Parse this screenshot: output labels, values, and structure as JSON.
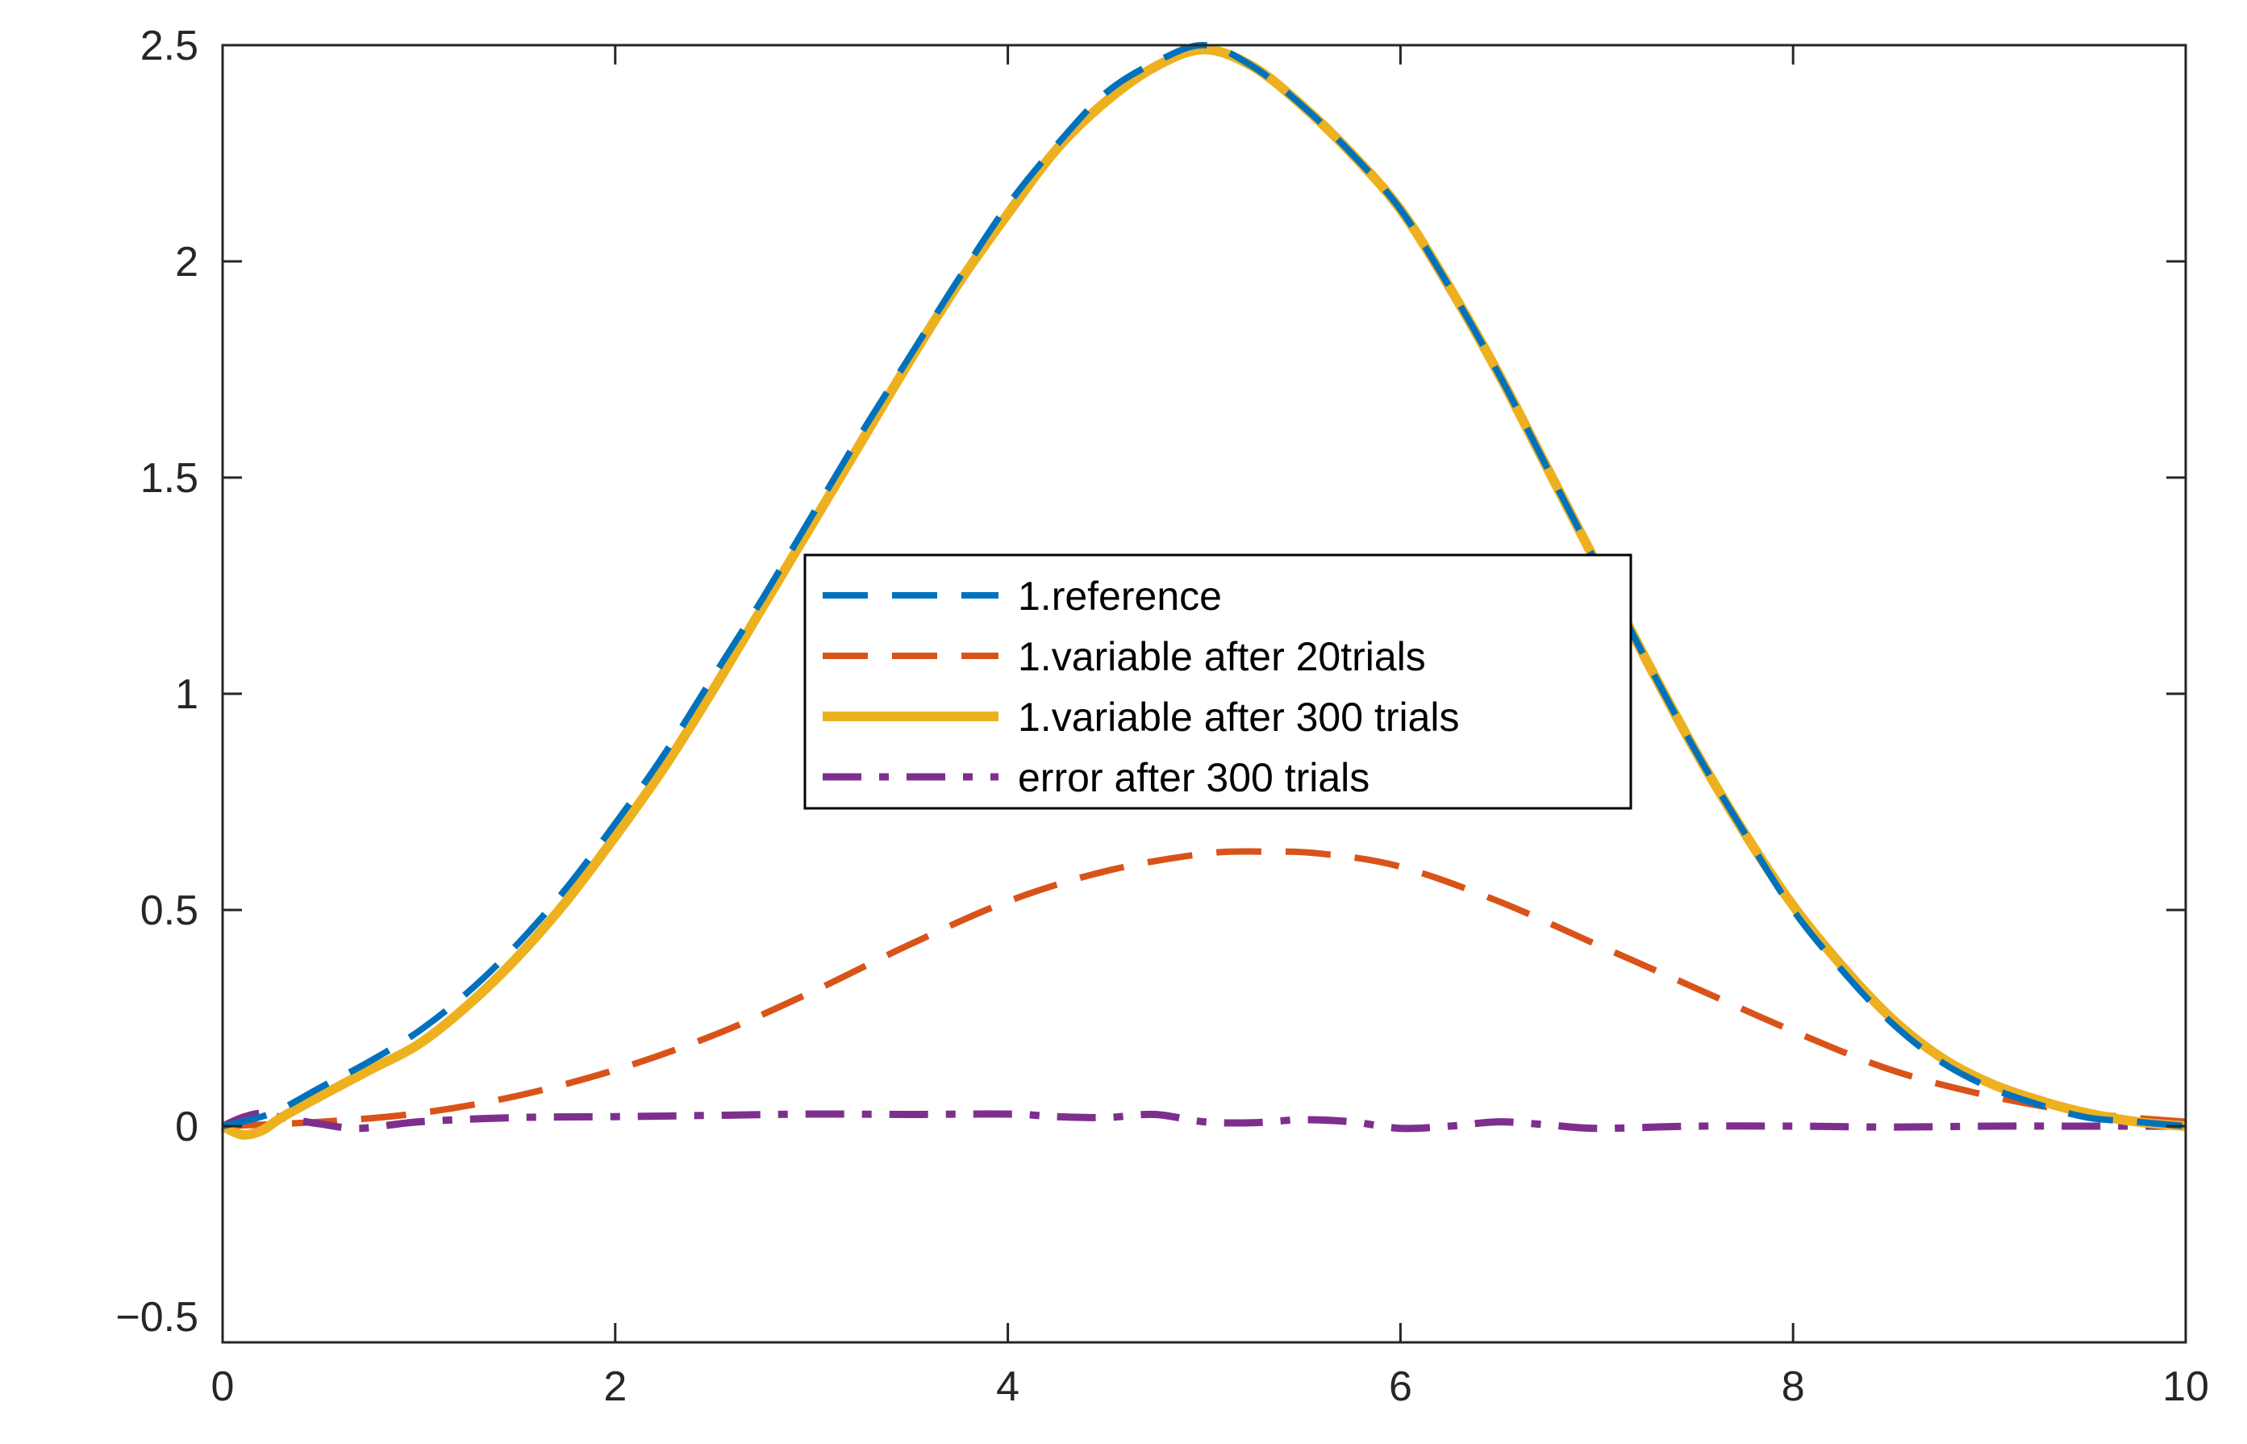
{
  "chart_data": {
    "type": "line",
    "title": "",
    "xlabel": "",
    "ylabel": "",
    "xlim": [
      0,
      10
    ],
    "ylim": [
      -0.5,
      2.5
    ],
    "grid": false,
    "legend_position": "center",
    "xticks": [
      {
        "value": 0,
        "label": "0"
      },
      {
        "value": 2,
        "label": "2"
      },
      {
        "value": 4,
        "label": "4"
      },
      {
        "value": 6,
        "label": "6"
      },
      {
        "value": 8,
        "label": "8"
      },
      {
        "value": 10,
        "label": "10"
      }
    ],
    "yticks": [
      {
        "value": -0.5,
        "label": "−0.5"
      },
      {
        "value": 0,
        "label": "0"
      },
      {
        "value": 0.5,
        "label": "0.5"
      },
      {
        "value": 1,
        "label": "1"
      },
      {
        "value": 1.5,
        "label": "1.5"
      },
      {
        "value": 2,
        "label": "2"
      },
      {
        "value": 2.5,
        "label": "2.5"
      }
    ],
    "series": [
      {
        "name": "1.reference",
        "color": "#0072BD",
        "style": "dashed",
        "x": [
          0,
          0.25,
          0.5,
          0.75,
          1.0,
          1.25,
          1.5,
          1.75,
          2.0,
          2.25,
          2.5,
          2.75,
          3.0,
          3.25,
          3.5,
          3.75,
          4.0,
          4.25,
          4.5,
          4.75,
          5.0,
          5.25,
          5.5,
          5.75,
          6.0,
          6.25,
          6.5,
          6.75,
          7.0,
          7.25,
          7.5,
          7.75,
          8.0,
          8.25,
          8.5,
          8.75,
          9.0,
          9.25,
          9.5,
          9.75,
          10.0
        ],
        "y": [
          0.0,
          0.03,
          0.09,
          0.15,
          0.22,
          0.31,
          0.42,
          0.55,
          0.7,
          0.86,
          1.04,
          1.22,
          1.41,
          1.6,
          1.78,
          1.96,
          2.13,
          2.27,
          2.39,
          2.46,
          2.5,
          2.45,
          2.36,
          2.25,
          2.12,
          1.94,
          1.74,
          1.52,
          1.3,
          1.08,
          0.87,
          0.68,
          0.5,
          0.36,
          0.24,
          0.15,
          0.09,
          0.05,
          0.02,
          0.01,
          0.0
        ]
      },
      {
        "name": "1.variable after 20trials",
        "color": "#D95319",
        "style": "dashed",
        "x": [
          0,
          0.5,
          1.0,
          1.5,
          2.0,
          2.5,
          3.0,
          3.5,
          4.0,
          4.5,
          5.0,
          5.3,
          5.6,
          6.0,
          6.5,
          7.0,
          7.5,
          8.0,
          8.5,
          9.0,
          9.5,
          10.0
        ],
        "y": [
          0.0,
          0.01,
          0.03,
          0.07,
          0.13,
          0.21,
          0.31,
          0.42,
          0.52,
          0.59,
          0.63,
          0.635,
          0.63,
          0.6,
          0.52,
          0.42,
          0.32,
          0.22,
          0.13,
          0.07,
          0.03,
          0.01
        ]
      },
      {
        "name": "1.variable after 300 trials",
        "color": "#EDB120",
        "style": "solid",
        "x": [
          0,
          0.1,
          0.2,
          0.3,
          0.5,
          0.75,
          1.0,
          1.25,
          1.5,
          1.75,
          2.0,
          2.25,
          2.5,
          2.75,
          3.0,
          3.25,
          3.5,
          3.75,
          4.0,
          4.25,
          4.5,
          4.75,
          5.0,
          5.25,
          5.5,
          5.75,
          6.0,
          6.25,
          6.5,
          6.75,
          7.0,
          7.25,
          7.5,
          7.75,
          8.0,
          8.25,
          8.5,
          8.75,
          9.0,
          9.25,
          9.5,
          9.75,
          10.0
        ],
        "y": [
          0.0,
          -0.02,
          -0.01,
          0.02,
          0.07,
          0.13,
          0.19,
          0.28,
          0.39,
          0.52,
          0.67,
          0.83,
          1.01,
          1.2,
          1.39,
          1.58,
          1.77,
          1.95,
          2.11,
          2.26,
          2.37,
          2.45,
          2.49,
          2.45,
          2.36,
          2.25,
          2.12,
          1.94,
          1.74,
          1.52,
          1.3,
          1.08,
          0.87,
          0.68,
          0.51,
          0.37,
          0.25,
          0.16,
          0.1,
          0.06,
          0.03,
          0.01,
          0.0
        ]
      },
      {
        "name": "error after 300 trials",
        "color": "#7E2F8E",
        "style": "dashdot",
        "x": [
          0,
          0.1,
          0.2,
          0.3,
          0.5,
          0.7,
          1.0,
          1.5,
          2.0,
          2.5,
          3.0,
          3.5,
          4.0,
          4.25,
          4.5,
          4.75,
          5.0,
          5.25,
          5.5,
          5.75,
          6.0,
          6.25,
          6.5,
          6.75,
          7.0,
          7.5,
          8.0,
          8.5,
          9.0,
          9.5,
          10.0
        ],
        "y": [
          0.0,
          0.02,
          0.03,
          0.02,
          0.005,
          -0.005,
          0.01,
          0.02,
          0.022,
          0.025,
          0.028,
          0.027,
          0.028,
          0.022,
          0.02,
          0.027,
          0.01,
          0.008,
          0.015,
          0.01,
          -0.005,
          0.0,
          0.01,
          0.003,
          -0.005,
          0.0,
          0.0,
          -0.002,
          0.0,
          0.0,
          0.0
        ]
      }
    ]
  }
}
